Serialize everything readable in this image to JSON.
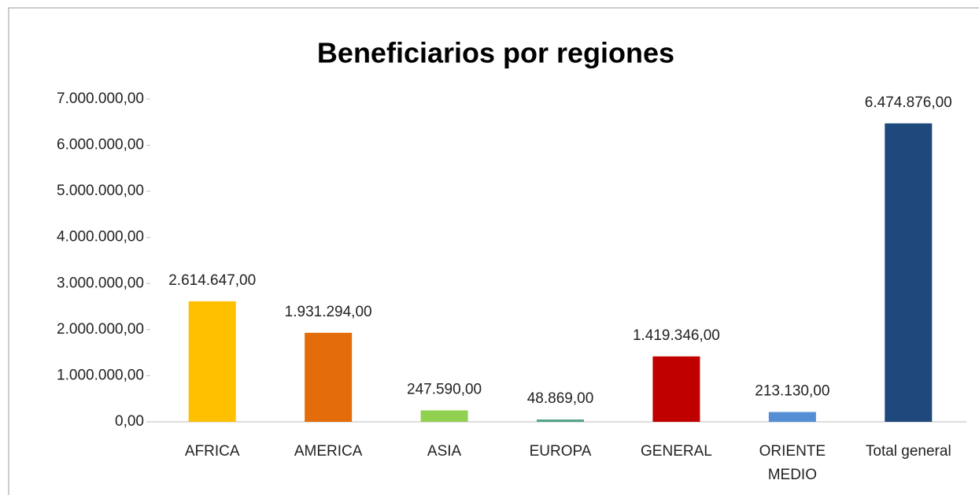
{
  "chart_data": {
    "type": "bar",
    "title": "Beneficiarios por regiones",
    "categories": [
      "AFRICA",
      "AMERICA",
      "ASIA",
      "EUROPA",
      "GENERAL",
      "ORIENTE MEDIO",
      "Total general"
    ],
    "values": [
      2614647,
      1931294,
      247590,
      48869,
      1419346,
      213130,
      6474876
    ],
    "value_labels": [
      "2.614.647,00",
      "1.931.294,00",
      "247.590,00",
      "48.869,00",
      "1.419.346,00",
      "213.130,00",
      "6.474.876,00"
    ],
    "colors": [
      "#FFC000",
      "#E46C0A",
      "#92D050",
      "#4E9F86",
      "#C00000",
      "#558ED5",
      "#1F497D"
    ],
    "ylim": [
      0,
      7000000
    ],
    "yticks": [
      {
        "value": 0,
        "label": "0,00"
      },
      {
        "value": 1000000,
        "label": "1.000.000,00"
      },
      {
        "value": 2000000,
        "label": "2.000.000,00"
      },
      {
        "value": 3000000,
        "label": "3.000.000,00"
      },
      {
        "value": 4000000,
        "label": "4.000.000,00"
      },
      {
        "value": 5000000,
        "label": "5.000.000,00"
      },
      {
        "value": 6000000,
        "label": "6.000.000,00"
      },
      {
        "value": 7000000,
        "label": "7.000.000,00"
      }
    ],
    "grid": false
  }
}
